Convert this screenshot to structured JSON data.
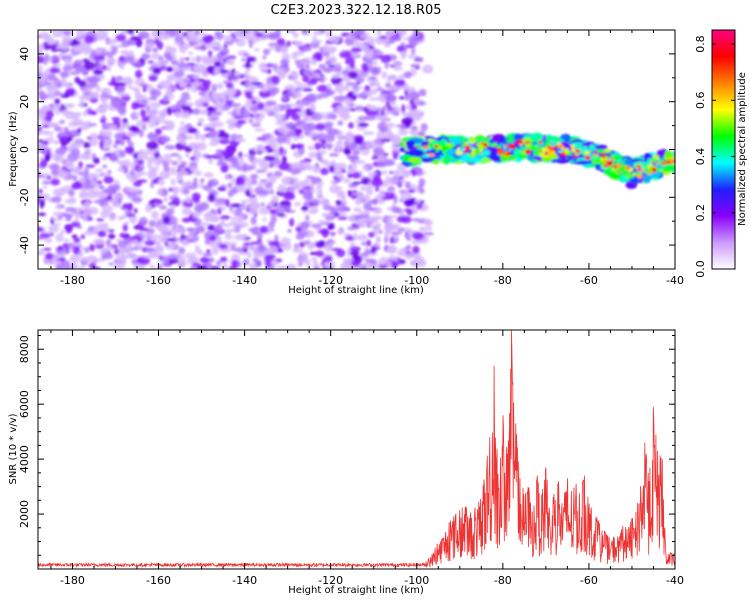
{
  "title": "C2E3.2023.322.12.18.R05",
  "chart_data": [
    {
      "type": "heatmap",
      "title": "C2E3.2023.322.12.18.R05",
      "xlabel": "Height of straight line (km)",
      "ylabel": "Frequency (Hz)",
      "xlim": [
        -188,
        -40
      ],
      "ylim": [
        -50,
        50
      ],
      "x_ticks": [
        -180,
        -160,
        -140,
        -120,
        -100,
        -80,
        -60,
        -40
      ],
      "y_ticks": [
        -40,
        -20,
        0,
        20,
        40
      ],
      "grid": false,
      "colorbar": {
        "label": "Normalized spectral amplitude",
        "range": [
          0,
          0.85
        ],
        "ticks": [
          0.0,
          0.2,
          0.4,
          0.6,
          0.8
        ],
        "colormap": [
          "#ffffff",
          "#cc99ff",
          "#8800ff",
          "#2020ff",
          "#00ffff",
          "#00ff00",
          "#ffff00",
          "#ff8000",
          "#ff0000",
          "#ff0080"
        ]
      },
      "regions": [
        {
          "description": "noise",
          "x_range": [
            -188,
            -98
          ],
          "freq_range": [
            -50,
            50
          ],
          "amplitude_range": [
            0.0,
            0.12
          ]
        },
        {
          "description": "signal band",
          "x_range": [
            -103,
            -40
          ],
          "center_freq": [
            [
              -103,
              -1
            ],
            [
              -95,
              0
            ],
            [
              -85,
              0
            ],
            [
              -75,
              1
            ],
            [
              -65,
              0
            ],
            [
              -58,
              -3
            ],
            [
              -50,
              -10
            ],
            [
              -42,
              -5
            ]
          ],
          "bandwidth_hz": 6,
          "peak_amplitude": 0.85
        }
      ]
    },
    {
      "type": "line",
      "xlabel": "Height of straight line (km)",
      "ylabel": "SNR (10 * v/v)",
      "xlim": [
        -188,
        -40
      ],
      "ylim": [
        0,
        8700
      ],
      "x_ticks": [
        -180,
        -160,
        -140,
        -120,
        -100,
        -80,
        -60,
        -40
      ],
      "y_ticks": [
        2000,
        4000,
        6000,
        8000
      ],
      "grid": false,
      "color": "#ee3333",
      "series": [
        {
          "x": [
            -188,
            -180,
            -170,
            -160,
            -150,
            -140,
            -130,
            -120,
            -110,
            -100,
            -97,
            -95,
            -93,
            -91,
            -89,
            -87,
            -85,
            -83,
            -82,
            -81,
            -80,
            -79,
            -78,
            -77,
            -76,
            -75,
            -74,
            -73,
            -72,
            -71,
            -70,
            -69,
            -68,
            -67,
            -66,
            -65,
            -64,
            -63,
            -62,
            -61,
            -60,
            -59,
            -58,
            -57,
            -56,
            -55,
            -54,
            -53,
            -52,
            -51,
            -50,
            -49,
            -48,
            -47,
            -46,
            -45,
            -44,
            -43,
            -42,
            -41,
            -40
          ],
          "y": [
            180,
            160,
            170,
            175,
            165,
            170,
            180,
            170,
            175,
            190,
            400,
            1000,
            1600,
            2000,
            2300,
            2100,
            2600,
            4800,
            7400,
            2800,
            5600,
            4200,
            8700,
            5300,
            3300,
            2900,
            3000,
            2300,
            3400,
            2700,
            3700,
            2200,
            2800,
            3200,
            2700,
            3300,
            2800,
            3100,
            2900,
            3400,
            2400,
            2100,
            1800,
            1500,
            1300,
            1100,
            1300,
            1100,
            1700,
            1400,
            1900,
            2100,
            3000,
            4600,
            3200,
            5900,
            4300,
            4000,
            500,
            600,
            550
          ]
        }
      ]
    }
  ]
}
